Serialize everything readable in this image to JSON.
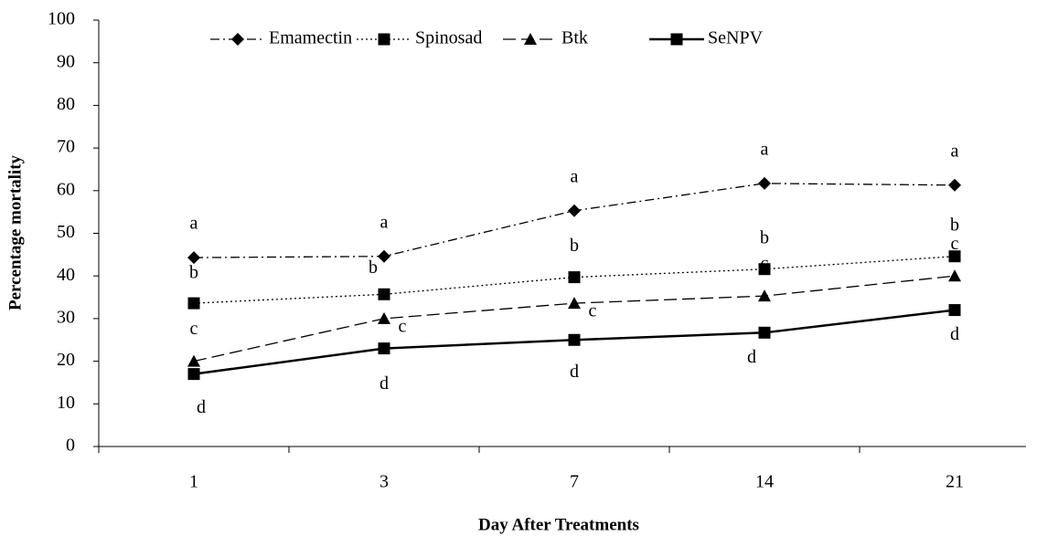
{
  "chart_data": {
    "type": "line",
    "x_label": "Day After Treatments",
    "y_label": "Percentage mortality",
    "categories": [
      "1",
      "3",
      "7",
      "14",
      "21"
    ],
    "ylim": [
      0,
      100
    ],
    "yticks": [
      0,
      10,
      20,
      30,
      40,
      50,
      60,
      70,
      80,
      90,
      100
    ],
    "legend": "top",
    "series": [
      {
        "name": "Emamectin",
        "color": "#000000",
        "values": [
          44.3,
          44.6,
          55.3,
          61.7,
          61.3
        ],
        "labels": [
          "a",
          "a",
          "a",
          "a",
          "a"
        ]
      },
      {
        "name": "Spinosad",
        "color": "#000000",
        "values": [
          33.6,
          35.7,
          39.7,
          41.6,
          44.6
        ],
        "labels": [
          "b",
          "b",
          "b",
          "b",
          "b"
        ]
      },
      {
        "name": "Btk",
        "color": "#000000",
        "values": [
          20,
          30,
          33.6,
          35.3,
          40
        ],
        "labels": [
          "c",
          "c",
          "c",
          "c",
          "c"
        ]
      },
      {
        "name": "SeNPV",
        "color": "#000000",
        "values": [
          17,
          23,
          25,
          26.7,
          32
        ],
        "labels": [
          "d",
          "d",
          "d",
          "d",
          "d"
        ]
      }
    ]
  }
}
